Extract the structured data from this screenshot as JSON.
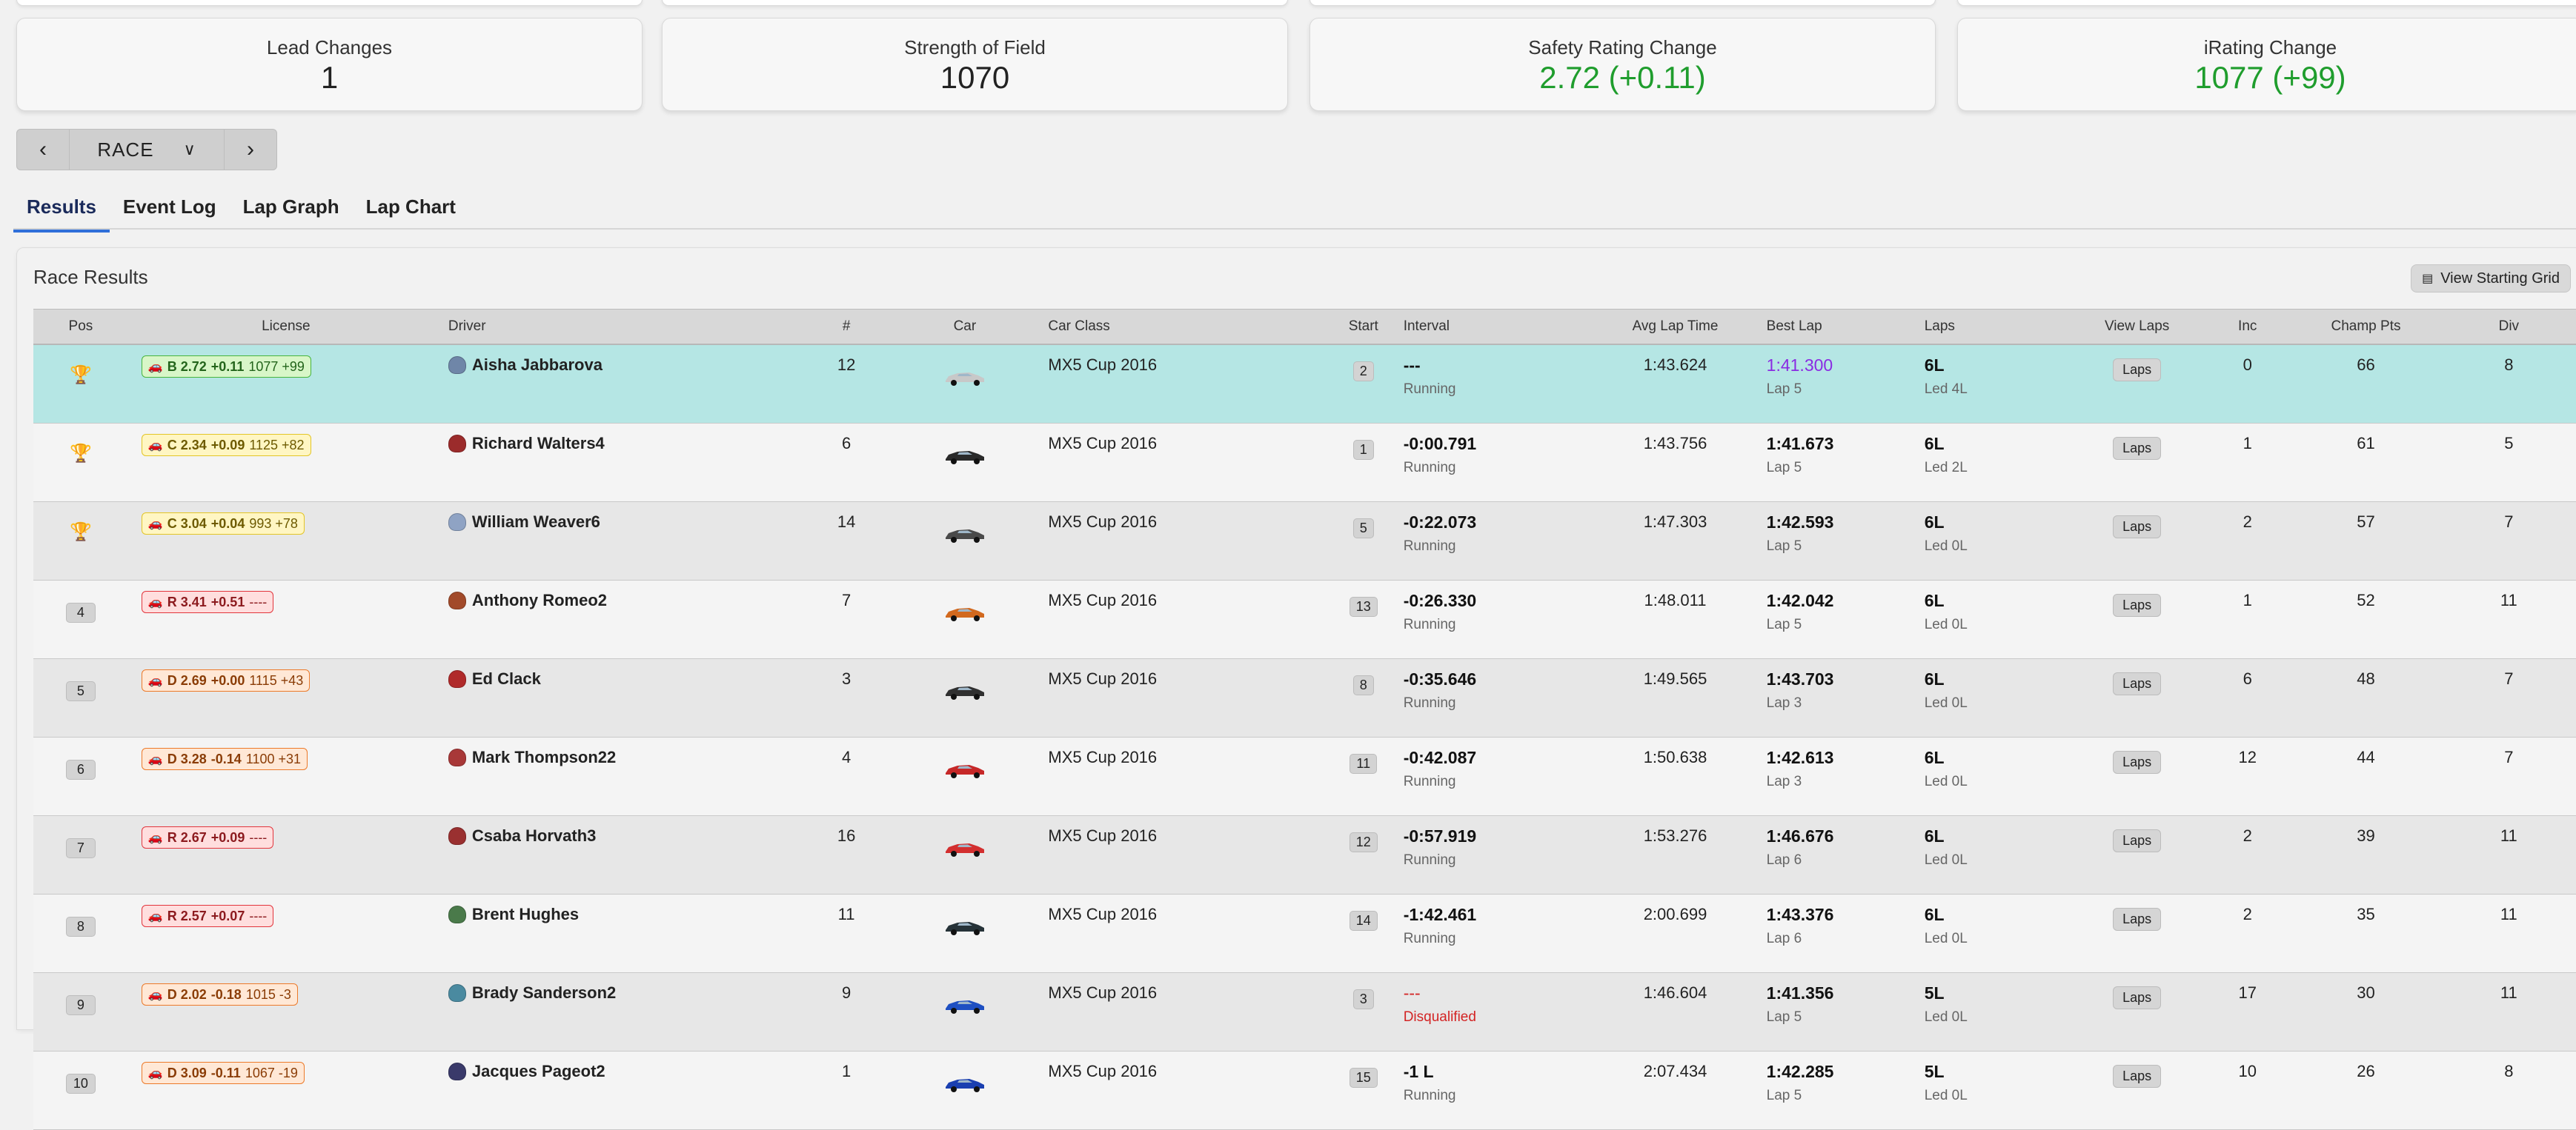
{
  "stats": [
    {
      "label": "Lead Changes",
      "value": "1",
      "highlight": false
    },
    {
      "label": "Strength of Field",
      "value": "1070",
      "highlight": false
    },
    {
      "label": "Safety Rating Change",
      "value": "2.72 (+0.11)",
      "highlight": true
    },
    {
      "label": "iRating Change",
      "value": "1077 (+99)",
      "highlight": true
    }
  ],
  "session_nav": {
    "prev_icon": "chevron-left-icon",
    "selected": "RACE",
    "dropdown_icon": "chevron-down-icon",
    "next_icon": "chevron-right-icon"
  },
  "tabs": [
    {
      "label": "Results",
      "active": true
    },
    {
      "label": "Event Log",
      "active": false
    },
    {
      "label": "Lap Graph",
      "active": false
    },
    {
      "label": "Lap Chart",
      "active": false
    }
  ],
  "panel": {
    "title": "Race Results",
    "view_grid_label": "View Starting Grid",
    "view_grid_icon": "grid-icon"
  },
  "columns": [
    "Pos",
    "License",
    "Driver",
    "#",
    "Car",
    "Car Class",
    "Start",
    "Interval",
    "Avg Lap Time",
    "Best Lap",
    "Laps",
    "View Laps",
    "Inc",
    "Champ Pts",
    "Div"
  ],
  "rows": [
    {
      "pos": "1",
      "trophy": "gold",
      "lic_class": "B",
      "lic_sr": "B 2.72",
      "lic_sr_change": "+0.11",
      "lic_ir": "1077 +99",
      "driver": "Aisha Jabbarova",
      "helmet": "#6f86a8",
      "num": "12",
      "car_color": "#c8c8c8",
      "car_class": "MX5 Cup 2016",
      "start": "2",
      "interval": "---",
      "status": "Running",
      "status_red": false,
      "interval_red": false,
      "avg": "1:43.624",
      "best": "1:41.300",
      "best_purple": true,
      "best_lap": "Lap 5",
      "laps": "6L",
      "led": "Led 4L",
      "laps_btn": "Laps",
      "inc": "0",
      "pts": "66",
      "div": "8"
    },
    {
      "pos": "2",
      "trophy": "silver",
      "lic_class": "C",
      "lic_sr": "C 2.34",
      "lic_sr_change": "+0.09",
      "lic_ir": "1125 +82",
      "driver": "Richard Walters4",
      "helmet": "#9b2b2b",
      "num": "6",
      "car_color": "#2a2a2a",
      "car_class": "MX5 Cup 2016",
      "start": "1",
      "interval": "-0:00.791",
      "status": "Running",
      "status_red": false,
      "interval_red": false,
      "avg": "1:43.756",
      "best": "1:41.673",
      "best_purple": false,
      "best_lap": "Lap 5",
      "laps": "6L",
      "led": "Led 2L",
      "laps_btn": "Laps",
      "inc": "1",
      "pts": "61",
      "div": "5"
    },
    {
      "pos": "3",
      "trophy": "bronze",
      "lic_class": "C",
      "lic_sr": "C 3.04",
      "lic_sr_change": "+0.04",
      "lic_ir": "993 +78",
      "driver": "William Weaver6",
      "helmet": "#8fa3c4",
      "num": "14",
      "car_color": "#4a4a4a",
      "car_class": "MX5 Cup 2016",
      "start": "5",
      "interval": "-0:22.073",
      "status": "Running",
      "status_red": false,
      "interval_red": false,
      "avg": "1:47.303",
      "best": "1:42.593",
      "best_purple": false,
      "best_lap": "Lap 5",
      "laps": "6L",
      "led": "Led 0L",
      "laps_btn": "Laps",
      "inc": "2",
      "pts": "57",
      "div": "7"
    },
    {
      "pos": "4",
      "trophy": "",
      "lic_class": "R",
      "lic_sr": "R 3.41",
      "lic_sr_change": "+0.51",
      "lic_ir": "----",
      "driver": "Anthony Romeo2",
      "helmet": "#a24a2a",
      "num": "7",
      "car_color": "#d2691e",
      "car_class": "MX5 Cup 2016",
      "start": "13",
      "interval": "-0:26.330",
      "status": "Running",
      "status_red": false,
      "interval_red": false,
      "avg": "1:48.011",
      "best": "1:42.042",
      "best_purple": false,
      "best_lap": "Lap 5",
      "laps": "6L",
      "led": "Led 0L",
      "laps_btn": "Laps",
      "inc": "1",
      "pts": "52",
      "div": "11"
    },
    {
      "pos": "5",
      "trophy": "",
      "lic_class": "D",
      "lic_sr": "D 2.69",
      "lic_sr_change": "+0.00",
      "lic_ir": "1115 +43",
      "driver": "Ed Clack",
      "helmet": "#b02a2a",
      "num": "3",
      "car_color": "#303030",
      "car_class": "MX5 Cup 2016",
      "start": "8",
      "interval": "-0:35.646",
      "status": "Running",
      "status_red": false,
      "interval_red": false,
      "avg": "1:49.565",
      "best": "1:43.703",
      "best_purple": false,
      "best_lap": "Lap 3",
      "laps": "6L",
      "led": "Led 0L",
      "laps_btn": "Laps",
      "inc": "6",
      "pts": "48",
      "div": "7"
    },
    {
      "pos": "6",
      "trophy": "",
      "lic_class": "D",
      "lic_sr": "D 3.28",
      "lic_sr_change": "-0.14",
      "lic_ir": "1100 +31",
      "driver": "Mark Thompson22",
      "helmet": "#a83838",
      "num": "4",
      "car_color": "#c62828",
      "car_class": "MX5 Cup 2016",
      "start": "11",
      "interval": "-0:42.087",
      "status": "Running",
      "status_red": false,
      "interval_red": false,
      "avg": "1:50.638",
      "best": "1:42.613",
      "best_purple": false,
      "best_lap": "Lap 3",
      "laps": "6L",
      "led": "Led 0L",
      "laps_btn": "Laps",
      "inc": "12",
      "pts": "44",
      "div": "7"
    },
    {
      "pos": "7",
      "trophy": "",
      "lic_class": "R",
      "lic_sr": "R 2.67",
      "lic_sr_change": "+0.09",
      "lic_ir": "----",
      "driver": "Csaba Horvath3",
      "helmet": "#9a3030",
      "num": "16",
      "car_color": "#d32f2f",
      "car_class": "MX5 Cup 2016",
      "start": "12",
      "interval": "-0:57.919",
      "status": "Running",
      "status_red": false,
      "interval_red": false,
      "avg": "1:53.276",
      "best": "1:46.676",
      "best_purple": false,
      "best_lap": "Lap 6",
      "laps": "6L",
      "led": "Led 0L",
      "laps_btn": "Laps",
      "inc": "2",
      "pts": "39",
      "div": "11"
    },
    {
      "pos": "8",
      "trophy": "",
      "lic_class": "R",
      "lic_sr": "R 2.57",
      "lic_sr_change": "+0.07",
      "lic_ir": "----",
      "driver": "Brent Hughes",
      "helmet": "#4a7a4a",
      "num": "11",
      "car_color": "#263238",
      "car_class": "MX5 Cup 2016",
      "start": "14",
      "interval": "-1:42.461",
      "status": "Running",
      "status_red": false,
      "interval_red": false,
      "avg": "2:00.699",
      "best": "1:43.376",
      "best_purple": false,
      "best_lap": "Lap 6",
      "laps": "6L",
      "led": "Led 0L",
      "laps_btn": "Laps",
      "inc": "2",
      "pts": "35",
      "div": "11"
    },
    {
      "pos": "9",
      "trophy": "",
      "lic_class": "D",
      "lic_sr": "D 2.02",
      "lic_sr_change": "-0.18",
      "lic_ir": "1015 -3",
      "driver": "Brady Sanderson2",
      "helmet": "#4a8aa0",
      "num": "9",
      "car_color": "#1e4fc2",
      "car_class": "MX5 Cup 2016",
      "start": "3",
      "interval": "---",
      "status": "Disqualified",
      "status_red": true,
      "interval_red": true,
      "avg": "1:46.604",
      "best": "1:41.356",
      "best_purple": false,
      "best_lap": "Lap 5",
      "laps": "5L",
      "led": "Led 0L",
      "laps_btn": "Laps",
      "inc": "17",
      "pts": "30",
      "div": "11"
    },
    {
      "pos": "10",
      "trophy": "",
      "lic_class": "D",
      "lic_sr": "D 3.09",
      "lic_sr_change": "-0.11",
      "lic_ir": "1067 -19",
      "driver": "Jacques Pageot2",
      "helmet": "#3a3a6a",
      "num": "1",
      "car_color": "#1a3fb0",
      "car_class": "MX5 Cup 2016",
      "start": "15",
      "interval": "-1 L",
      "status": "Running",
      "status_red": false,
      "interval_red": false,
      "avg": "2:07.434",
      "best": "1:42.285",
      "best_purple": false,
      "best_lap": "Lap 5",
      "laps": "5L",
      "led": "Led 0L",
      "laps_btn": "Laps",
      "inc": "10",
      "pts": "26",
      "div": "8"
    }
  ]
}
